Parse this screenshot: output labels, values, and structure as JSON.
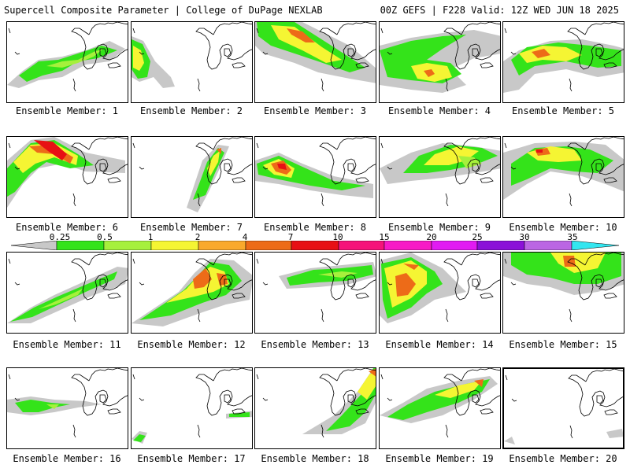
{
  "header": {
    "title": "Supercell Composite Parameter | College of DuPage NEXLAB",
    "run_info": "00Z GEFS | F228 Valid: 12Z WED JUN 18 2025"
  },
  "colorbar": {
    "labels": [
      "0.25",
      "0.5",
      "1",
      "2",
      "4",
      "7",
      "10",
      "15",
      "20",
      "25",
      "30",
      "35"
    ],
    "colors": [
      "#c8c8c8",
      "#34e31a",
      "#a6f03c",
      "#f5f533",
      "#f9a92c",
      "#ed6b18",
      "#e71014",
      "#f5137a",
      "#f71ac6",
      "#e11bf2",
      "#8b11d8",
      "#bb66e3",
      "#33e6f0"
    ]
  },
  "palette": {
    "gray": "#c8c8c8",
    "green": "#34e31a",
    "lightgreen": "#a6f03c",
    "yellow": "#f5f533",
    "orange": "#f9a92c",
    "darkorange": "#ed6b18",
    "red": "#e71014"
  },
  "members": [
    {
      "label": "Ensemble Member: 1"
    },
    {
      "label": "Ensemble Member: 2"
    },
    {
      "label": "Ensemble Member: 3"
    },
    {
      "label": "Ensemble Member: 4"
    },
    {
      "label": "Ensemble Member: 5"
    },
    {
      "label": "Ensemble Member: 6"
    },
    {
      "label": "Ensemble Member: 7"
    },
    {
      "label": "Ensemble Member: 8"
    },
    {
      "label": "Ensemble Member: 9"
    },
    {
      "label": "Ensemble Member: 10"
    },
    {
      "label": "Ensemble Member: 11"
    },
    {
      "label": "Ensemble Member: 12"
    },
    {
      "label": "Ensemble Member: 13"
    },
    {
      "label": "Ensemble Member: 14"
    },
    {
      "label": "Ensemble Member: 15"
    },
    {
      "label": "Ensemble Member: 16"
    },
    {
      "label": "Ensemble Member: 17"
    },
    {
      "label": "Ensemble Member: 18"
    },
    {
      "label": "Ensemble Member: 19"
    },
    {
      "label": "Ensemble Member: 20"
    }
  ]
}
